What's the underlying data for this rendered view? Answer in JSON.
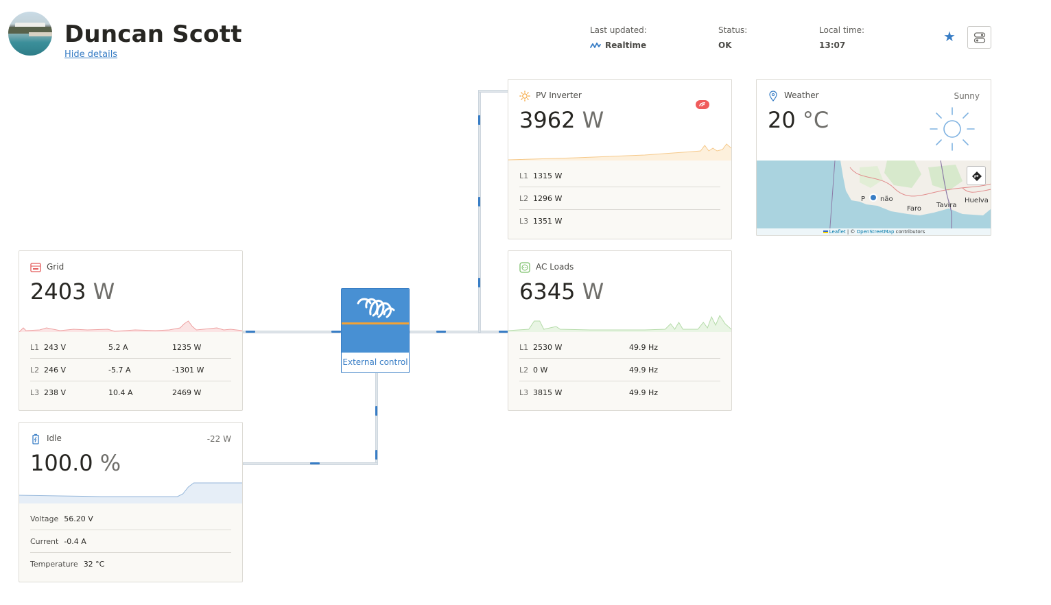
{
  "header": {
    "site_name": "Duncan Scott",
    "hide_details": "Hide details",
    "last_updated_label": "Last updated:",
    "last_updated_value": "Realtime",
    "status_label": "Status:",
    "status_value": "OK",
    "local_time_label": "Local time:",
    "local_time_value": "13:07"
  },
  "grid": {
    "title": "Grid",
    "value": "2403",
    "unit": "W",
    "rows": [
      {
        "phase": "L1",
        "voltage": "243 V",
        "current": "5.2 A",
        "power": "1235 W"
      },
      {
        "phase": "L2",
        "voltage": "246 V",
        "current": "-5.7 A",
        "power": "-1301 W"
      },
      {
        "phase": "L3",
        "voltage": "238 V",
        "current": "10.4 A",
        "power": "2469 W"
      }
    ]
  },
  "battery": {
    "title": "Idle",
    "aux": "-22 W",
    "value": "100.0",
    "unit": "%",
    "rows": [
      {
        "label": "Voltage",
        "value": "56.20 V"
      },
      {
        "label": "Current",
        "value": "-0.4 A"
      },
      {
        "label": "Temperature",
        "value": "32 °C"
      }
    ]
  },
  "device": {
    "label": "External control"
  },
  "pv": {
    "title": "PV Inverter",
    "value": "3962",
    "unit": "W",
    "rows": [
      {
        "phase": "L1",
        "power": "1315 W"
      },
      {
        "phase": "L2",
        "power": "1296 W"
      },
      {
        "phase": "L3",
        "power": "1351 W"
      }
    ]
  },
  "loads": {
    "title": "AC Loads",
    "value": "6345",
    "unit": "W",
    "rows": [
      {
        "phase": "L1",
        "power": "2530 W",
        "freq": "49.9 Hz"
      },
      {
        "phase": "L2",
        "power": "0 W",
        "freq": "49.9 Hz"
      },
      {
        "phase": "L3",
        "power": "3815 W",
        "freq": "49.9 Hz"
      }
    ]
  },
  "weather": {
    "title": "Weather",
    "condition": "Sunny",
    "value": "20",
    "unit": "°C",
    "map": {
      "cities": [
        "P",
        "não",
        "Faro",
        "Tavira",
        "Huelva"
      ],
      "attribution_leaflet": "Leaflet",
      "attribution_sep": " | © ",
      "attribution_osm": "OpenStreetMap",
      "attribution_tail": " contributors"
    }
  },
  "colors": {
    "accent": "#387dc5",
    "device_blue": "#4890d3",
    "device_stripe": "#f4a234",
    "grid_red": "#e35a5a",
    "pv_orange": "#f4a234",
    "loads_green": "#7cc06b",
    "alarm_red": "#ef5b5b"
  }
}
